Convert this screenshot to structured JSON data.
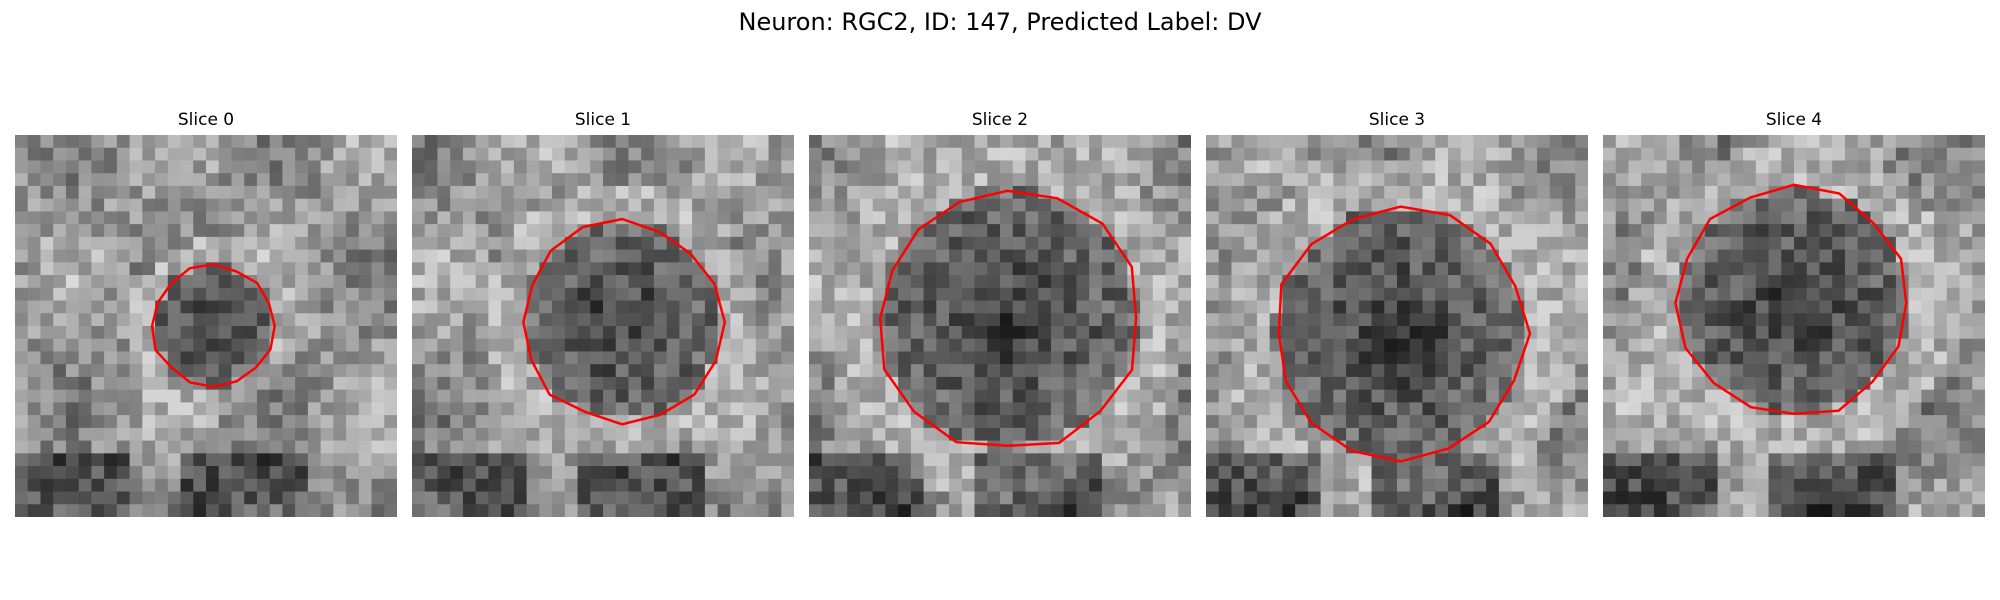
{
  "figure": {
    "suptitle": "Neuron: RGC2, ID: 147, Predicted Label: DV",
    "contour_color": "#ff0000",
    "colormap": "gray",
    "panels": [
      {
        "title": "Slice 0",
        "contour_rel_radius": 0.16,
        "center": [
          0.52,
          0.5
        ]
      },
      {
        "title": "Slice 1",
        "contour_rel_radius": 0.26,
        "center": [
          0.55,
          0.49
        ]
      },
      {
        "title": "Slice 2",
        "contour_rel_radius": 0.34,
        "center": [
          0.52,
          0.48
        ]
      },
      {
        "title": "Slice 3",
        "contour_rel_radius": 0.33,
        "center": [
          0.51,
          0.52
        ]
      },
      {
        "title": "Slice 4",
        "contour_rel_radius": 0.3,
        "center": [
          0.5,
          0.44
        ]
      }
    ]
  }
}
